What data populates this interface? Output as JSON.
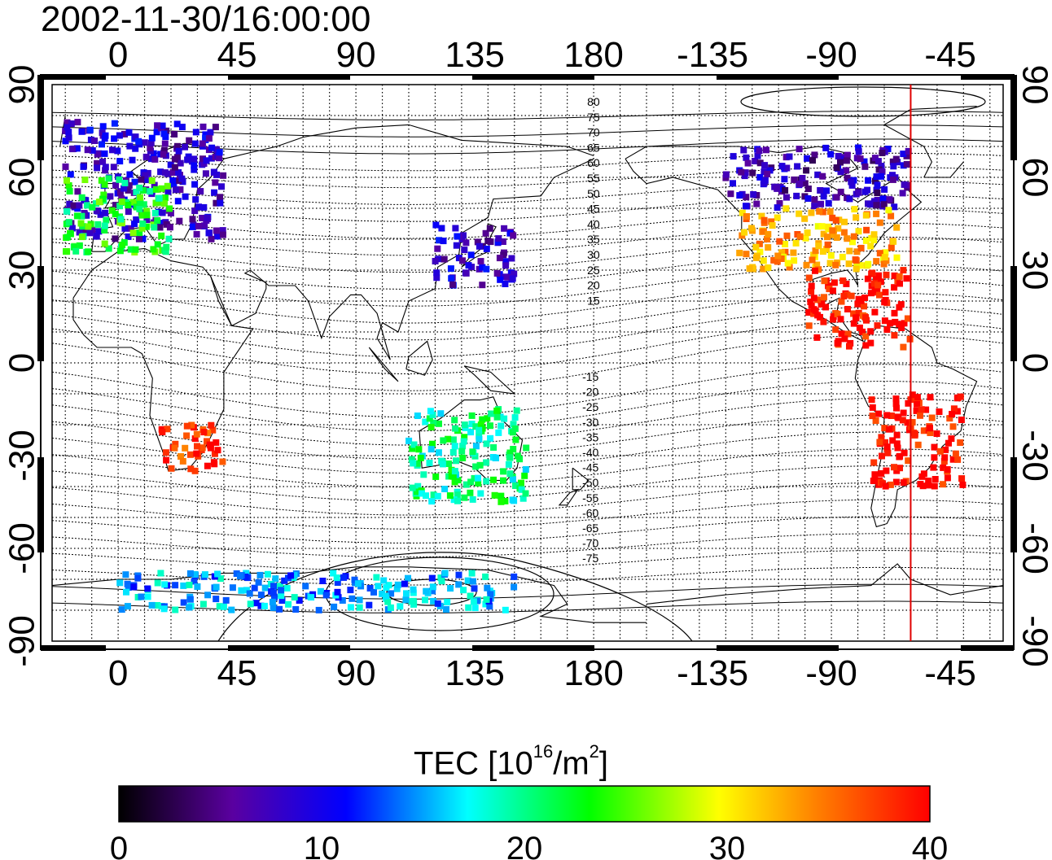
{
  "title": "2002-11-30/16:00:00",
  "map": {
    "projection": "equirectangular",
    "longitude_ticks_labels": [
      "0",
      "45",
      "90",
      "135",
      "180",
      "-135",
      "-90",
      "-45"
    ],
    "latitude_ticks_labels": [
      "90",
      "60",
      "30",
      "0",
      "-30",
      "-60",
      "-90"
    ],
    "graticule": "dotted grid every 10 degrees",
    "solar_terminator_marker": {
      "longitude": -60,
      "color": "#e00000"
    },
    "contour_labels_north": [
      "80",
      "75",
      "70",
      "65",
      "60",
      "55",
      "50",
      "45",
      "40",
      "35",
      "30",
      "25",
      "20",
      "15"
    ],
    "contour_labels_south": [
      "-15",
      "-20",
      "-25",
      "-30",
      "-35",
      "-40",
      "-45",
      "-50",
      "-55",
      "-60",
      "-65",
      "-70",
      "-75"
    ]
  },
  "colorbar": {
    "label_prefix": "TEC  [10",
    "label_exp1": "16",
    "label_mid": "/m",
    "label_exp2": "2",
    "label_suffix": "]",
    "min": 0,
    "max": 40,
    "tick_labels": [
      "0",
      "10",
      "20",
      "30",
      "40"
    ],
    "colormap": [
      "#000000",
      "#5a00a0",
      "#0000ff",
      "#00ffff",
      "#00ff00",
      "#ffff00",
      "#ff8000",
      "#ff0000"
    ]
  },
  "chart_data": {
    "type": "heatmap",
    "title": "2002-11-30/16:00:00",
    "xlabel": "",
    "ylabel": "",
    "xlim": [
      -25,
      335
    ],
    "ylim": [
      -90,
      90
    ],
    "value_label": "TEC [10^16/m^2]",
    "value_range": [
      0,
      40
    ],
    "regions": [
      {
        "name": "",
        "lon": [
          -20,
          40
        ],
        "lat": [
          40,
          78
        ],
        "tec": 8
      },
      {
        "name": "",
        "lon": [
          -20,
          20
        ],
        "lat": [
          35,
          60
        ],
        "tec": 23
      },
      {
        "name": "",
        "lon": [
          15,
          40
        ],
        "lat": [
          -35,
          -20
        ],
        "tec": 38
      },
      {
        "name": "",
        "lon": [
          120,
          150
        ],
        "lat": [
          25,
          45
        ],
        "tec": 8
      },
      {
        "name": "",
        "lon": [
          -130,
          -60
        ],
        "lat": [
          50,
          70
        ],
        "tec": 7
      },
      {
        "name": "",
        "lon": [
          -125,
          -65
        ],
        "lat": [
          30,
          50
        ],
        "tec": 33
      },
      {
        "name": "",
        "lon": [
          -100,
          -60
        ],
        "lat": [
          5,
          30
        ],
        "tec": 40
      },
      {
        "name": "",
        "lon": [
          -75,
          -40
        ],
        "lat": [
          -40,
          -10
        ],
        "tec": 40
      },
      {
        "name": "",
        "lon": [
          110,
          155
        ],
        "lat": [
          -45,
          -15
        ],
        "tec": 20
      },
      {
        "name": "",
        "lon": [
          0,
          150
        ],
        "lat": [
          -80,
          -68
        ],
        "tec": 15
      }
    ]
  }
}
